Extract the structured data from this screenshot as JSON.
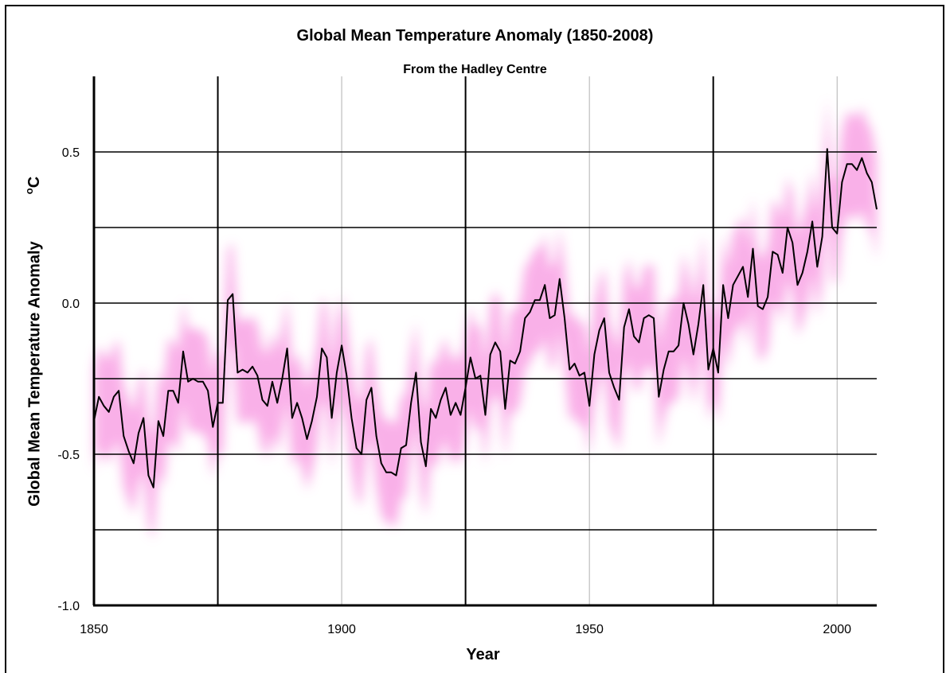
{
  "chart_data": {
    "type": "line",
    "title": "Global Mean Temperature Anomaly (1850-2008)",
    "subtitle": "From the Hadley Centre",
    "xlabel": "Year",
    "ylabel": "Global Mean Temperature Anomaly",
    "yunit_prefix": "o",
    "yunit": "C",
    "xlim": [
      1850,
      2008
    ],
    "ylim": [
      -1.0,
      0.75
    ],
    "xticks": [
      1850,
      1900,
      1950,
      2000
    ],
    "xtick_labels": [
      "1850",
      "1900",
      "1950",
      "2000"
    ],
    "yticks": [
      -1.0,
      -0.5,
      0.0,
      0.5
    ],
    "ytick_labels": [
      "-1.0",
      "-0.5",
      "0.0",
      "0.5"
    ],
    "major_vlines": [
      1875,
      1925,
      1975
    ],
    "minor_vlines": [
      1900,
      1950,
      2000
    ],
    "hlines": [
      -0.75,
      -0.5,
      -0.25,
      0.0,
      0.25,
      0.5
    ],
    "grid": true,
    "series": [
      {
        "color": "#000000",
        "band_color": "#f9a8e6",
        "band_halfwidth": 0.17,
        "x": [
          1850,
          1851,
          1852,
          1853,
          1854,
          1855,
          1856,
          1857,
          1858,
          1859,
          1860,
          1861,
          1862,
          1863,
          1864,
          1865,
          1866,
          1867,
          1868,
          1869,
          1870,
          1871,
          1872,
          1873,
          1874,
          1875,
          1876,
          1877,
          1878,
          1879,
          1880,
          1881,
          1882,
          1883,
          1884,
          1885,
          1886,
          1887,
          1888,
          1889,
          1890,
          1891,
          1892,
          1893,
          1894,
          1895,
          1896,
          1897,
          1898,
          1899,
          1900,
          1901,
          1902,
          1903,
          1904,
          1905,
          1906,
          1907,
          1908,
          1909,
          1910,
          1911,
          1912,
          1913,
          1914,
          1915,
          1916,
          1917,
          1918,
          1919,
          1920,
          1921,
          1922,
          1923,
          1924,
          1925,
          1926,
          1927,
          1928,
          1929,
          1930,
          1931,
          1932,
          1933,
          1934,
          1935,
          1936,
          1937,
          1938,
          1939,
          1940,
          1941,
          1942,
          1943,
          1944,
          1945,
          1946,
          1947,
          1948,
          1949,
          1950,
          1951,
          1952,
          1953,
          1954,
          1955,
          1956,
          1957,
          1958,
          1959,
          1960,
          1961,
          1962,
          1963,
          1964,
          1965,
          1966,
          1967,
          1968,
          1969,
          1970,
          1971,
          1972,
          1973,
          1974,
          1975,
          1976,
          1977,
          1978,
          1979,
          1980,
          1981,
          1982,
          1983,
          1984,
          1985,
          1986,
          1987,
          1988,
          1989,
          1990,
          1991,
          1992,
          1993,
          1994,
          1995,
          1996,
          1997,
          1998,
          1999,
          2000,
          2001,
          2002,
          2003,
          2004,
          2005,
          2006,
          2007,
          2008
        ],
        "values": [
          -0.39,
          -0.31,
          -0.34,
          -0.36,
          -0.31,
          -0.29,
          -0.44,
          -0.49,
          -0.53,
          -0.43,
          -0.38,
          -0.57,
          -0.61,
          -0.39,
          -0.44,
          -0.29,
          -0.29,
          -0.33,
          -0.16,
          -0.26,
          -0.25,
          -0.26,
          -0.26,
          -0.29,
          -0.41,
          -0.33,
          -0.33,
          0.01,
          0.03,
          -0.23,
          -0.22,
          -0.23,
          -0.21,
          -0.24,
          -0.32,
          -0.34,
          -0.26,
          -0.33,
          -0.25,
          -0.15,
          -0.38,
          -0.33,
          -0.38,
          -0.45,
          -0.39,
          -0.31,
          -0.15,
          -0.18,
          -0.38,
          -0.23,
          -0.14,
          -0.24,
          -0.38,
          -0.48,
          -0.5,
          -0.32,
          -0.28,
          -0.44,
          -0.53,
          -0.56,
          -0.56,
          -0.57,
          -0.48,
          -0.47,
          -0.33,
          -0.23,
          -0.46,
          -0.54,
          -0.35,
          -0.38,
          -0.32,
          -0.28,
          -0.37,
          -0.33,
          -0.37,
          -0.28,
          -0.18,
          -0.25,
          -0.24,
          -0.37,
          -0.17,
          -0.13,
          -0.16,
          -0.35,
          -0.19,
          -0.2,
          -0.16,
          -0.05,
          -0.03,
          0.01,
          0.01,
          0.06,
          -0.05,
          -0.04,
          0.08,
          -0.05,
          -0.22,
          -0.2,
          -0.24,
          -0.23,
          -0.34,
          -0.17,
          -0.09,
          -0.05,
          -0.23,
          -0.28,
          -0.32,
          -0.08,
          -0.02,
          -0.11,
          -0.13,
          -0.05,
          -0.04,
          -0.05,
          -0.31,
          -0.22,
          -0.16,
          -0.16,
          -0.14,
          0.0,
          -0.07,
          -0.17,
          -0.07,
          0.06,
          -0.22,
          -0.15,
          -0.23,
          0.06,
          -0.05,
          0.06,
          0.09,
          0.12,
          0.02,
          0.18,
          -0.01,
          -0.02,
          0.02,
          0.17,
          0.16,
          0.1,
          0.25,
          0.2,
          0.06,
          0.1,
          0.17,
          0.27,
          0.12,
          0.22,
          0.51,
          0.25,
          0.23,
          0.4,
          0.46,
          0.46,
          0.44,
          0.48,
          0.43,
          0.4,
          0.31
        ]
      }
    ]
  }
}
